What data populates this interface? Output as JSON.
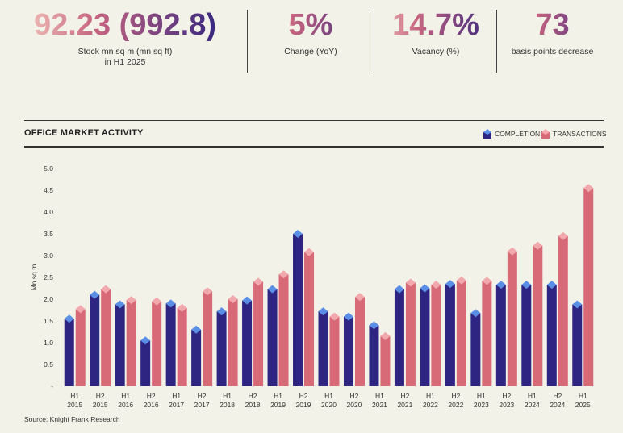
{
  "kpis": [
    {
      "value": "92.23 (992.8)",
      "label_line1": "Stock mn sq m (mn sq ft)",
      "label_line2": "in H1 2025"
    },
    {
      "value": "5%",
      "label_line1": "Change (YoY)"
    },
    {
      "value": "14.7%",
      "label_line1": "Vacancy (%)"
    },
    {
      "value": "73",
      "label_line1": "basis points decrease"
    }
  ],
  "section_title": "OFFICE MARKET ACTIVITY",
  "source": "Source: Knight Frank Research",
  "colors": {
    "completions": "#2e2582",
    "completions_cap": "#5b8fe6",
    "transactions": "#d86a78",
    "transactions_cap": "#f1a9ae"
  },
  "chart_data": {
    "type": "bar",
    "title": "OFFICE MARKET ACTIVITY",
    "ylabel": "Mn sq m",
    "xlabel": "",
    "ylim": [
      0,
      5.0
    ],
    "yticks": [
      "-",
      "0.5",
      "1.0",
      "1.5",
      "2.0",
      "2.5",
      "3.0",
      "3.5",
      "4.0",
      "4.5",
      "5.0"
    ],
    "legend_position": "top-right",
    "categories": [
      [
        "H1",
        "2015"
      ],
      [
        "H2",
        "2015"
      ],
      [
        "H1",
        "2016"
      ],
      [
        "H2",
        "2016"
      ],
      [
        "H1",
        "2017"
      ],
      [
        "H2",
        "2017"
      ],
      [
        "H1",
        "2018"
      ],
      [
        "H2",
        "2018"
      ],
      [
        "H1",
        "2019"
      ],
      [
        "H2",
        "2019"
      ],
      [
        "H1",
        "2020"
      ],
      [
        "H2",
        "2020"
      ],
      [
        "H1",
        "2021"
      ],
      [
        "H2",
        "2021"
      ],
      [
        "H1",
        "2022"
      ],
      [
        "H2",
        "2022"
      ],
      [
        "H1",
        "2023"
      ],
      [
        "H2",
        "2023"
      ],
      [
        "H1",
        "2024"
      ],
      [
        "H2",
        "2024"
      ],
      [
        "H1",
        "2025"
      ]
    ],
    "series": [
      {
        "name": "COMPLETIONS",
        "values": [
          1.55,
          2.1,
          1.88,
          1.05,
          1.9,
          1.3,
          1.72,
          1.97,
          2.23,
          3.5,
          1.72,
          1.6,
          1.4,
          2.23,
          2.25,
          2.35,
          1.68,
          2.33,
          2.33,
          2.33,
          1.88
        ]
      },
      {
        "name": "TRANSACTIONS",
        "values": [
          1.77,
          2.23,
          1.98,
          1.95,
          1.8,
          2.18,
          2.0,
          2.4,
          2.57,
          3.08,
          1.6,
          2.05,
          1.15,
          2.38,
          2.33,
          2.43,
          2.42,
          3.1,
          3.23,
          3.45,
          4.55
        ]
      }
    ]
  }
}
